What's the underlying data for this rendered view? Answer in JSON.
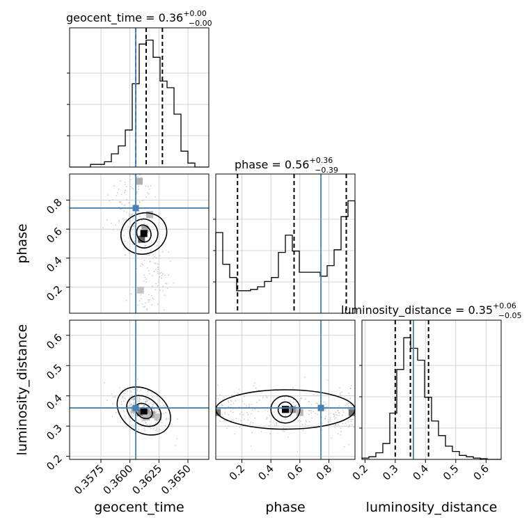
{
  "chart_data": {
    "type": "corner",
    "parameters": [
      "geocent_time",
      "phase",
      "luminosity_distance"
    ],
    "injection": {
      "geocent_time": 0.3605,
      "phase": 0.745,
      "luminosity_distance": 0.36
    },
    "titles": [
      {
        "name": "geocent_time",
        "median": "0.36",
        "plus": "+0.00",
        "minus": "−0.00"
      },
      {
        "name": "phase",
        "median": "0.56",
        "plus": "+0.36",
        "minus": "−0.39"
      },
      {
        "name": "luminosity_distance",
        "median": "0.35",
        "plus": "+0.06",
        "minus": "−0.05"
      }
    ],
    "axes": {
      "geocent_time": {
        "range": [
          0.3548,
          0.3668
        ],
        "ticks": [
          "0.3575",
          "0.3600",
          "0.3625",
          "0.3650"
        ],
        "tick_values": [
          0.3575,
          0.36,
          0.3625,
          0.365
        ],
        "quantiles": [
          0.3605,
          0.3614,
          0.3628
        ]
      },
      "phase": {
        "range": [
          0.02,
          0.98
        ],
        "ticks": [
          "0.2",
          "0.4",
          "0.6",
          "0.8"
        ],
        "tick_values": [
          0.2,
          0.4,
          0.6,
          0.8
        ],
        "quantiles": [
          0.17,
          0.56,
          0.92
        ]
      },
      "luminosity_distance": {
        "range": [
          0.19,
          0.65
        ],
        "ticks": [
          "0.2",
          "0.3",
          "0.4",
          "0.5",
          "0.6"
        ],
        "tick_values": [
          0.2,
          0.3,
          0.4,
          0.5,
          0.6
        ],
        "quantiles": [
          0.3,
          0.35,
          0.41
        ]
      }
    },
    "histograms": {
      "geocent_time": [
        0,
        0,
        0,
        0.02,
        0.02,
        0.04,
        0.1,
        0.16,
        0.28,
        0.63,
        0.93,
        0.96,
        0.83,
        0.65,
        0.6,
        0.4,
        0.12,
        0.03,
        0,
        0
      ],
      "phase": [
        0.61,
        0.37,
        0.27,
        0.17,
        0.17,
        0.18,
        0.2,
        0.24,
        0.27,
        0.46,
        0.59,
        0.47,
        0.31,
        0.31,
        0.31,
        0.28,
        0.36,
        0.48,
        0.73,
        0.85
      ],
      "luminosity_distance": [
        0.01,
        0.02,
        0.05,
        0.12,
        0.35,
        0.68,
        0.92,
        0.84,
        0.75,
        0.47,
        0.29,
        0.18,
        0.1,
        0.06,
        0.03,
        0.02,
        0.01,
        0.005,
        0,
        0
      ]
    },
    "grid": true
  }
}
